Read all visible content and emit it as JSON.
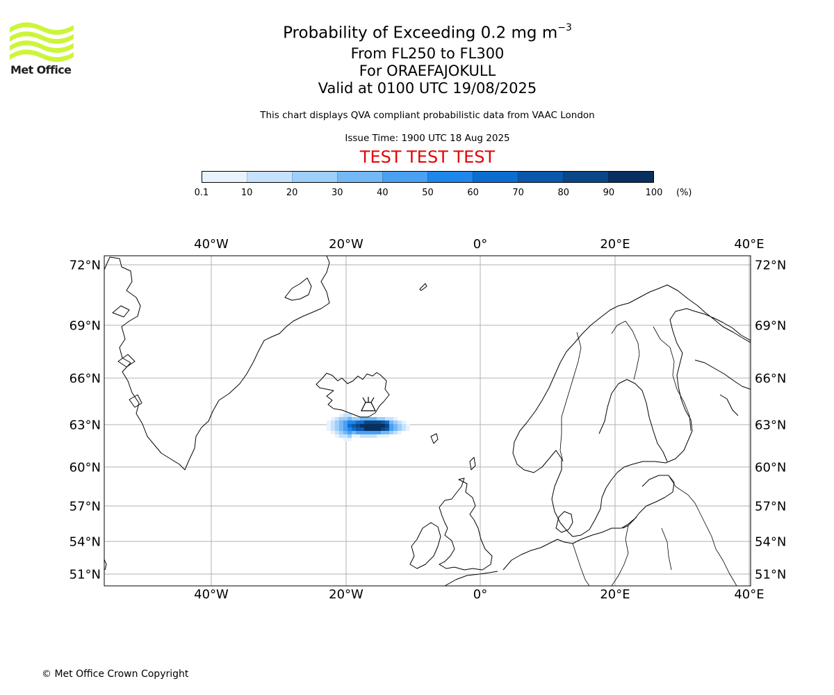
{
  "logo": {
    "text": "Met Office",
    "color": "#ccf53a"
  },
  "title": {
    "main": "Probability of Exceeding 0.2 mg m",
    "superscript": "−3",
    "level": "From FL250 to FL300",
    "volcano": "For ORAEFAJOKULL",
    "valid": "Valid at 0100 UTC 19/08/2025"
  },
  "subtitle": "This chart displays QVA compliant probabilistic data from VAAC London",
  "issue_time": "Issue Time: 1900 UTC 18 Aug 2025",
  "test_banner": "TEST TEST TEST",
  "colorbar": {
    "ticks": [
      "0.1",
      "10",
      "20",
      "30",
      "40",
      "50",
      "60",
      "70",
      "80",
      "90",
      "100"
    ],
    "unit": "(%)",
    "colors": [
      "#e8f3fe",
      "#c6e2fc",
      "#9ecefa",
      "#74b8f6",
      "#4aa0f2",
      "#1f87eb",
      "#0b6dd0",
      "#0a57ab",
      "#0a4787",
      "#072f60"
    ]
  },
  "map": {
    "lon_labels": [
      "40°W",
      "20°W",
      "0°",
      "20°E",
      "40°E"
    ],
    "lat_labels": [
      "72°N",
      "69°N",
      "66°N",
      "63°N",
      "60°N",
      "57°N",
      "54°N",
      "51°N"
    ],
    "gridline_color": "#b0b0b0",
    "volcano_icon": "volcano-icon",
    "plume_probability_percent": {
      "core": 95,
      "edge": 10
    }
  },
  "copyright": "© Met Office Crown Copyright"
}
